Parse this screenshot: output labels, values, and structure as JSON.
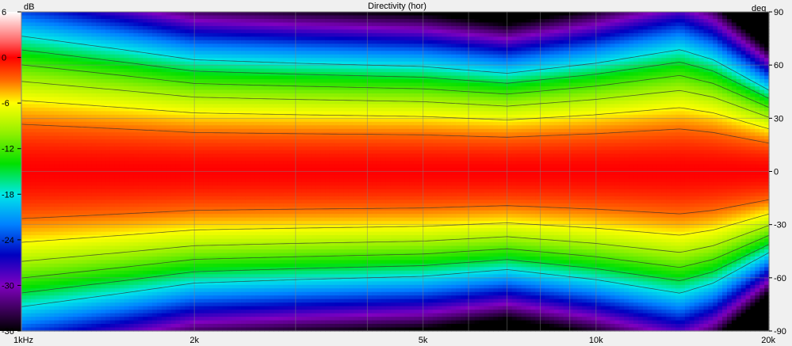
{
  "chart_data": {
    "type": "heatmap",
    "title": "Directivity (hor)",
    "colorbar": {
      "unit": "dB",
      "ticks": [
        6,
        0,
        -6,
        -12,
        -18,
        -24,
        -30,
        -36
      ],
      "range": [
        -36,
        6
      ],
      "colors": [
        {
          "db": 6,
          "hex": "#ffffff"
        },
        {
          "db": 2,
          "hex": "#ff6060"
        },
        {
          "db": 0,
          "hex": "#ff0000"
        },
        {
          "db": -3,
          "hex": "#ff6a00"
        },
        {
          "db": -6,
          "hex": "#ffff00"
        },
        {
          "db": -10,
          "hex": "#90f000"
        },
        {
          "db": -14,
          "hex": "#00e000"
        },
        {
          "db": -18,
          "hex": "#00e8e8"
        },
        {
          "db": -22,
          "hex": "#0080ff"
        },
        {
          "db": -26,
          "hex": "#0000c0"
        },
        {
          "db": -30,
          "hex": "#8000c0"
        },
        {
          "db": -33,
          "hex": "#400060"
        },
        {
          "db": -36,
          "hex": "#000000"
        }
      ]
    },
    "x_axis": {
      "scale": "log",
      "range_hz": [
        1000,
        20000
      ],
      "ticks": [
        {
          "hz": 1000,
          "label": "1kHz"
        },
        {
          "hz": 2000,
          "label": "2k"
        },
        {
          "hz": 5000,
          "label": "5k"
        },
        {
          "hz": 10000,
          "label": "10k"
        },
        {
          "hz": 20000,
          "label": "20k"
        }
      ]
    },
    "y_axis": {
      "unit": "deg",
      "range": [
        -90,
        90
      ],
      "ticks": [
        90,
        60,
        30,
        0,
        -30,
        -60,
        -90
      ]
    },
    "contour_levels_db": [
      -3,
      -6,
      -9,
      -12,
      -15,
      -18
    ],
    "beamwidth_minus6db_deg": {
      "freq_hz": [
        1000,
        1500,
        2000,
        3000,
        5000,
        7000,
        10000,
        14000,
        16000,
        20000
      ],
      "half_angle": [
        40,
        36,
        33,
        32,
        31,
        29,
        32,
        36,
        33,
        24
      ]
    },
    "grid": true
  }
}
